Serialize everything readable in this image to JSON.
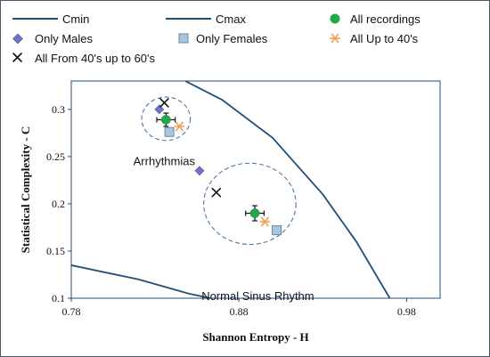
{
  "chart_data": {
    "type": "scatter",
    "title": "",
    "xlabel": "Shannon Entropy - H",
    "ylabel": "Statistical Complexity - C",
    "xlim": [
      0.78,
      1.0
    ],
    "ylim": [
      0.1,
      0.33
    ],
    "x_ticks": [
      0.78,
      0.88,
      0.98
    ],
    "x_tick_labels": [
      "0.78",
      "0.88",
      "0.98"
    ],
    "y_ticks": [
      0.1,
      0.15,
      0.2,
      0.25,
      0.3
    ],
    "y_tick_labels": [
      "0.1",
      "0.15",
      "0.2",
      "0.25",
      "0.3"
    ],
    "grid": false,
    "legend_placement": "top",
    "curves": [
      {
        "name": "Cmin",
        "color": "#1F4E79",
        "points": [
          [
            0.78,
            0.135
          ],
          [
            0.82,
            0.12
          ],
          [
            0.85,
            0.105
          ],
          [
            0.863,
            0.1
          ]
        ]
      },
      {
        "name": "Cmax",
        "color": "#1F4E79",
        "points": [
          [
            0.848,
            0.33
          ],
          [
            0.87,
            0.31
          ],
          [
            0.9,
            0.27
          ],
          [
            0.93,
            0.21
          ],
          [
            0.95,
            0.16
          ],
          [
            0.97,
            0.1
          ]
        ]
      }
    ],
    "series": [
      {
        "name": "All recordings",
        "marker": "circle",
        "color": "#22A84A",
        "error_bars": true,
        "points": [
          [
            0.8365,
            0.289
          ],
          [
            0.8895,
            0.19
          ]
        ]
      },
      {
        "name": "Only Males",
        "marker": "diamond",
        "color": "#7274C0",
        "points": [
          [
            0.8325,
            0.3
          ],
          [
            0.8565,
            0.235
          ]
        ]
      },
      {
        "name": "Only Females",
        "marker": "square",
        "color": "#A8C6DC",
        "points": [
          [
            0.8385,
            0.276
          ],
          [
            0.9025,
            0.172
          ]
        ]
      },
      {
        "name": "All Up to 40's",
        "marker": "asterisk",
        "color": "#F0A35C",
        "points": [
          [
            0.8445,
            0.282
          ],
          [
            0.8955,
            0.181
          ]
        ]
      },
      {
        "name": "All From 40's up to 60's",
        "marker": "cross",
        "color": "#111111",
        "points": [
          [
            0.8355,
            0.307
          ],
          [
            0.8665,
            0.212
          ]
        ]
      }
    ],
    "groups": [
      {
        "label": "Arrhythmias",
        "center": [
          0.8365,
          0.29
        ],
        "radius_h": 0.0145,
        "radius_v": 0.023
      },
      {
        "label": "Normal Sinus Rhythm",
        "center": [
          0.8865,
          0.2
        ],
        "radius_h": 0.0275,
        "radius_v": 0.043
      }
    ],
    "error_bars": [
      {
        "center": [
          0.8365,
          0.289
        ],
        "x_err": 0.0055,
        "y_err": 0.007
      },
      {
        "center": [
          0.8895,
          0.19
        ],
        "x_err": 0.0055,
        "y_err": 0.008
      }
    ]
  }
}
